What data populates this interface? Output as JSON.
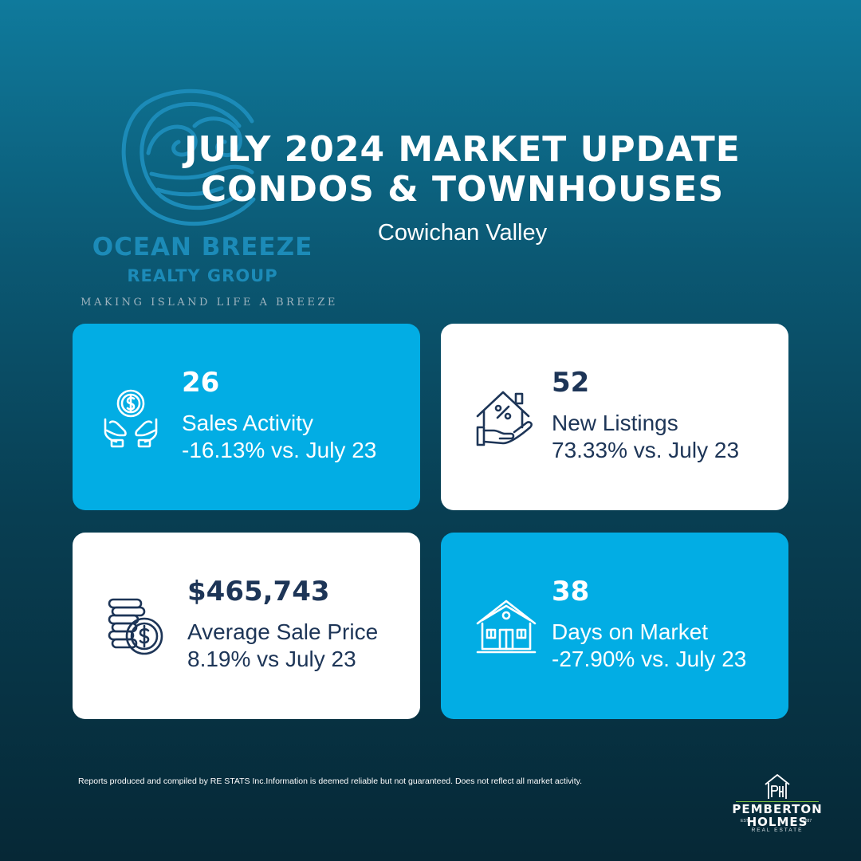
{
  "brand": {
    "name": "OCEAN BREEZE",
    "subtitle": "REALTY GROUP",
    "tagline": "MAKING ISLAND LIFE A BREEZE"
  },
  "header": {
    "title_line1": "JULY 2024 MARKET UPDATE",
    "title_line2": "CONDOS & TOWNHOUSES",
    "region": "Cowichan Valley"
  },
  "stats": [
    {
      "value": "26",
      "label": "Sales Activity",
      "change": "-16.13% vs. July 23",
      "icon": "money-hands-icon"
    },
    {
      "value": "52",
      "label": "New Listings",
      "change": "73.33% vs. July 23",
      "icon": "house-percent-icon"
    },
    {
      "value": "$465,743",
      "label": "Average Sale Price",
      "change": "8.19% vs July 23",
      "icon": "coins-dollar-icon"
    },
    {
      "value": "38",
      "label": "Days on Market",
      "change": "-27.90% vs. July 23",
      "icon": "house-icon"
    }
  ],
  "footer": {
    "disclaimer": "Reports produced and compiled by RE  STATS Inc.Information is deemed reliable but not guaranteed. Does not reflect all market activity.",
    "broker_line1": "PEMBERTON",
    "broker_line2": "HOLMES",
    "broker_est": "EST",
    "broker_year": "1887",
    "broker_sub": "REAL ESTATE"
  },
  "colors": {
    "accent_blue": "#02ade4",
    "navy_text": "#1d3557",
    "logo_blue": "#1c8bb8",
    "broker_green": "#7bc043"
  }
}
